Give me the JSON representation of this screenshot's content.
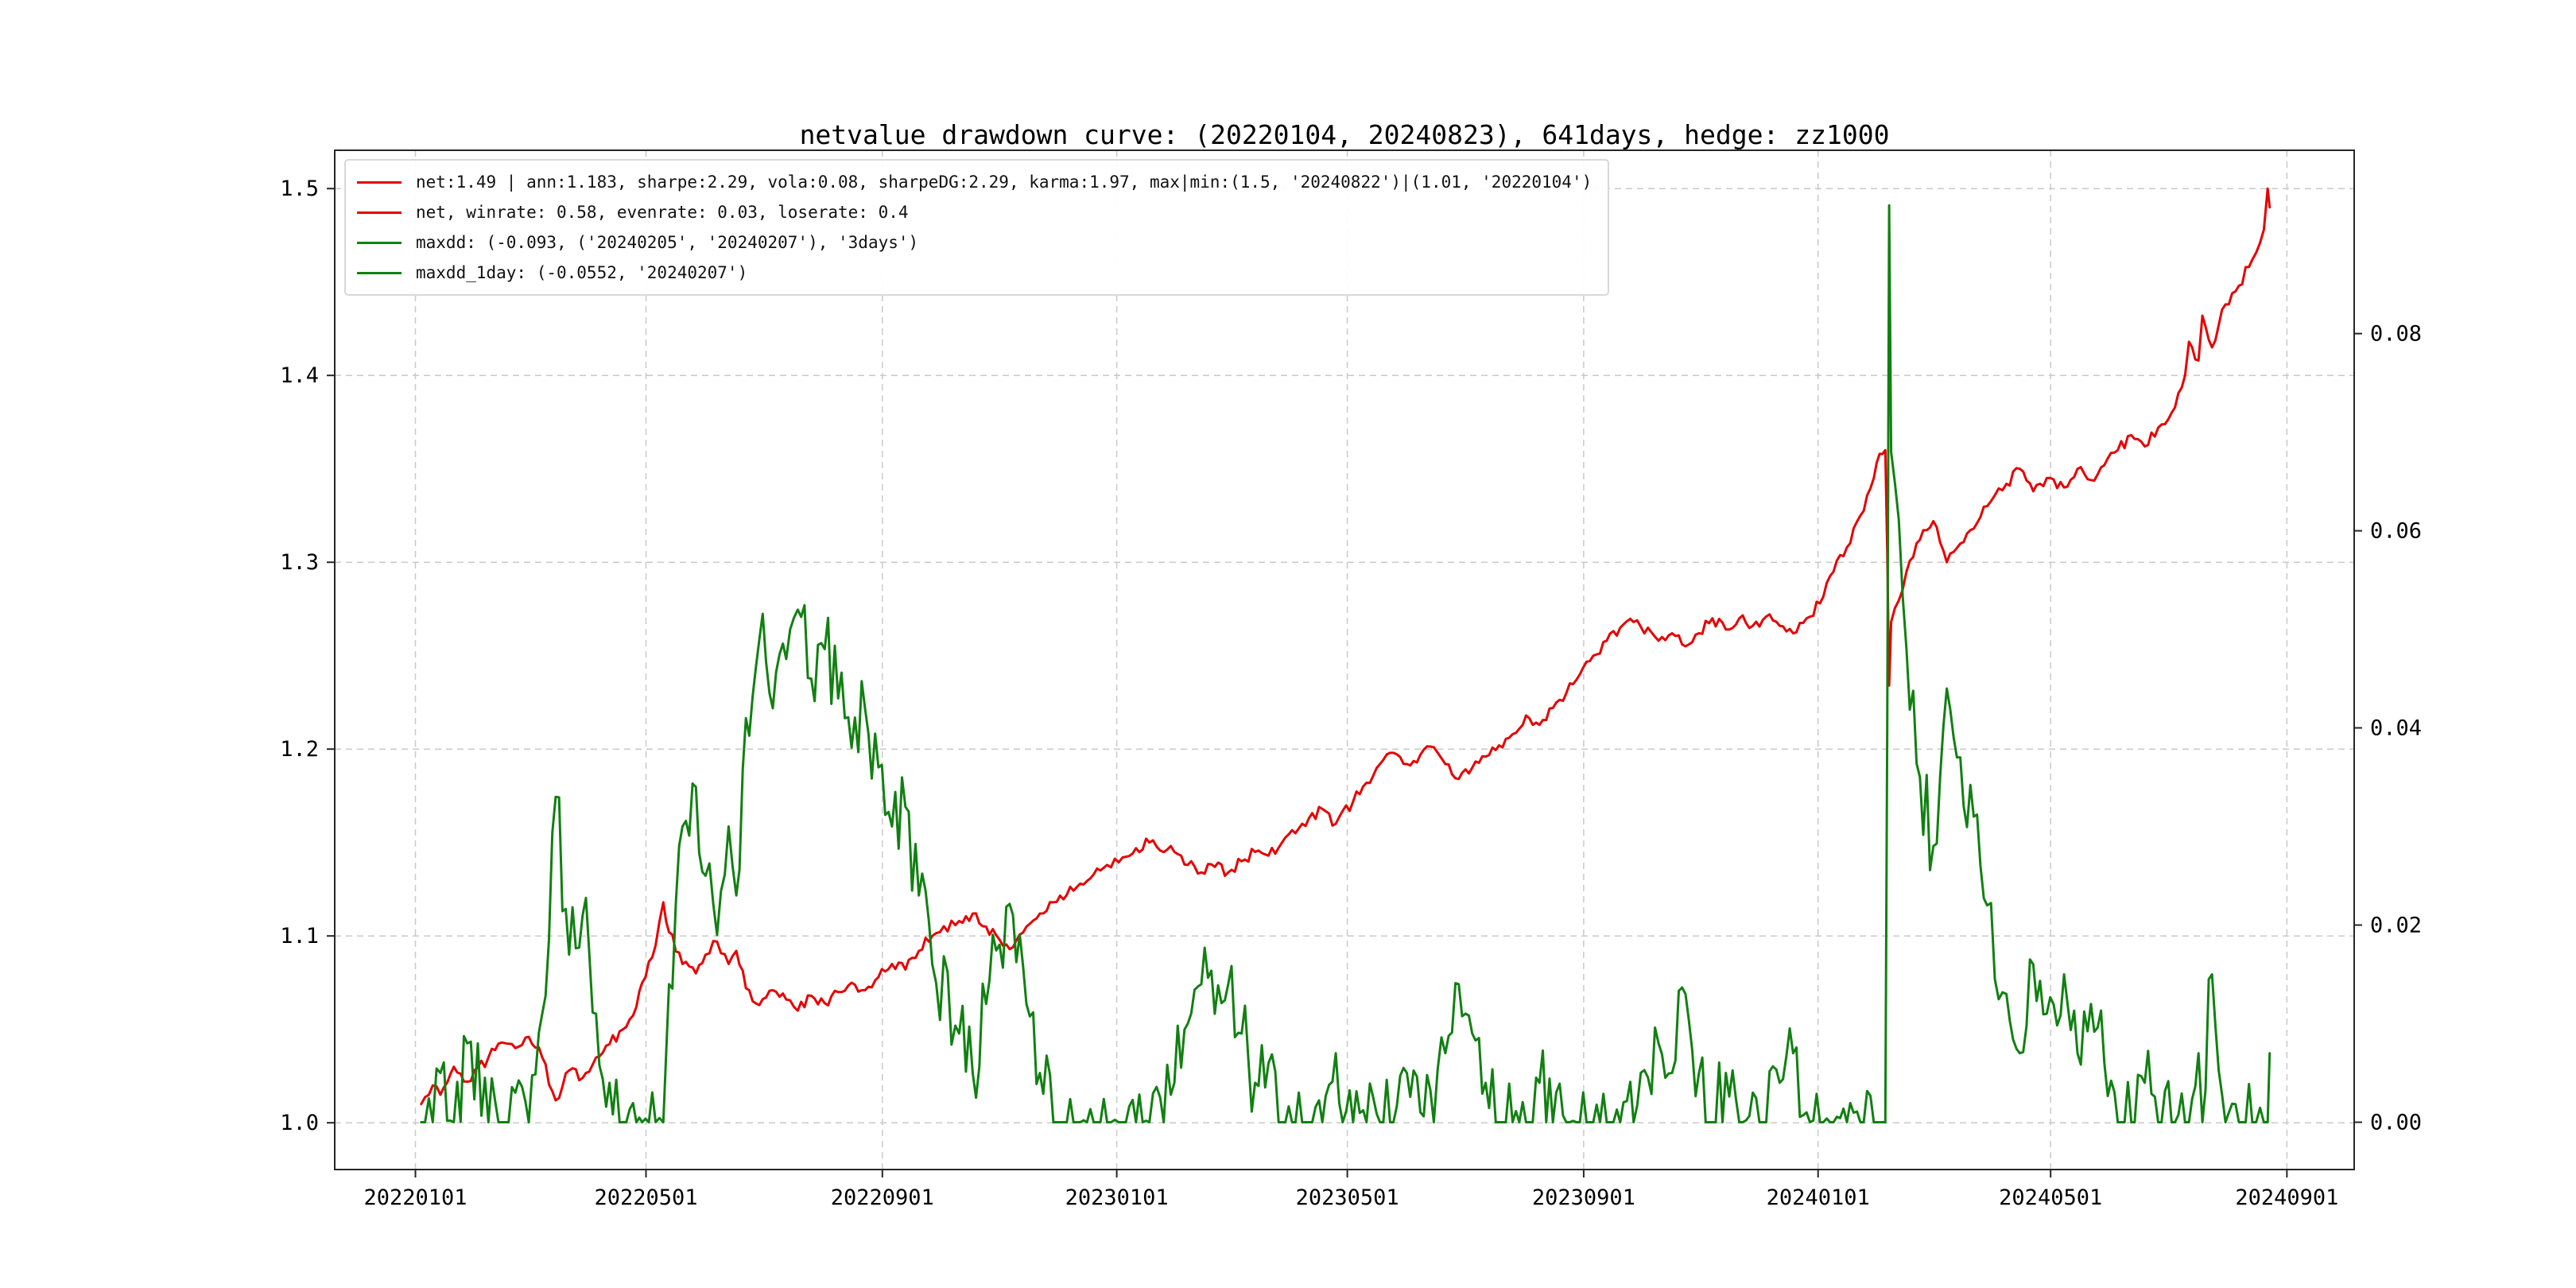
{
  "chart_data": {
    "type": "line",
    "title": "netvalue drawdown curve: (20220104, 20240823), 641days, hedge: zz1000",
    "grid": true,
    "legend_position": "upper left",
    "legend": {
      "items": [
        {
          "color": "#e60000",
          "label": "net:1.49 | ann:1.183, sharpe:2.29, vola:0.08, sharpeDG:2.29, karma:1.97, max|min:(1.5, '20240822')|(1.01, '20220104')"
        },
        {
          "color": "#e60000",
          "label": "net, winrate: 0.58, evenrate: 0.03, loserate: 0.4"
        },
        {
          "color": "#118011",
          "label": "maxdd: (-0.093, ('20240205', '20240207'), '3days')"
        },
        {
          "color": "#118011",
          "label": "maxdd_1day: (-0.0552, '20240207')"
        }
      ]
    },
    "x_axis": {
      "range": [
        "20211120",
        "20241006"
      ],
      "ticks": [
        "20220101",
        "20220501",
        "20220901",
        "20230101",
        "20230501",
        "20230901",
        "20240101",
        "20240501",
        "20240901"
      ]
    },
    "left_axis": {
      "label": "",
      "range": [
        0.975,
        1.5205
      ],
      "ticks": [
        1.0,
        1.1,
        1.2,
        1.3,
        1.4,
        1.5
      ],
      "labels": [
        "1.0",
        "1.1",
        "1.2",
        "1.3",
        "1.4",
        "1.5"
      ]
    },
    "right_axis": {
      "label": "",
      "range": [
        -0.0048,
        0.0986
      ],
      "ticks": [
        0.0,
        0.02,
        0.04,
        0.06,
        0.08
      ],
      "labels": [
        "0.00",
        "0.02",
        "0.04",
        "0.06",
        "0.08"
      ]
    },
    "dates": [
      "20220104",
      "20220110",
      "20220114",
      "20220121",
      "20220128",
      "20220208",
      "20220215",
      "20220222",
      "20220301",
      "20220308",
      "20220315",
      "20220322",
      "20220329",
      "20220405",
      "20220412",
      "20220419",
      "20220426",
      "20220429",
      "20220506",
      "20220510",
      "20220513",
      "20220520",
      "20220527",
      "20220601",
      "20220607",
      "20220613",
      "20220617",
      "20220622",
      "20220629",
      "20220706",
      "20220713",
      "20220719",
      "20220726",
      "20220802",
      "20220809",
      "20220816",
      "20220823",
      "20220830",
      "20220906",
      "20220913",
      "20220920",
      "20220927",
      "20221011",
      "20221018",
      "20221025",
      "20221101",
      "20221108",
      "20221115",
      "20221122",
      "20221129",
      "20221206",
      "20221213",
      "20221220",
      "20221227",
      "20230104",
      "20230111",
      "20230118",
      "20230131",
      "20230207",
      "20230214",
      "20230221",
      "20230228",
      "20230307",
      "20230314",
      "20230321",
      "20230328",
      "20230404",
      "20230411",
      "20230418",
      "20230425",
      "20230504",
      "20230511",
      "20230518",
      "20230525",
      "20230601",
      "20230608",
      "20230615",
      "20230621",
      "20230628",
      "20230705",
      "20230712",
      "20230719",
      "20230726",
      "20230802",
      "20230809",
      "20230816",
      "20230823",
      "20230830",
      "20230906",
      "20230913",
      "20230920",
      "20230927",
      "20231010",
      "20231017",
      "20231024",
      "20231031",
      "20231107",
      "20231114",
      "20231121",
      "20231128",
      "20231205",
      "20231212",
      "20231219",
      "20231226",
      "20240102",
      "20240109",
      "20240116",
      "20240123",
      "20240130",
      "20240202",
      "20240205",
      "20240206",
      "20240207",
      "20240208",
      "20240216",
      "20240223",
      "20240301",
      "20240308",
      "20240315",
      "20240322",
      "20240329",
      "20240408",
      "20240415",
      "20240422",
      "20240429",
      "20240508",
      "20240515",
      "20240522",
      "20240529",
      "20240605",
      "20240612",
      "20240619",
      "20240626",
      "20240703",
      "20240710",
      "20240712",
      "20240717",
      "20240719",
      "20240724",
      "20240731",
      "20240807",
      "20240814",
      "20240820",
      "20240822",
      "20240823"
    ],
    "series": [
      {
        "name": "net",
        "axis": "left",
        "color": "#e60000",
        "values": [
          1.01,
          1.02,
          1.015,
          1.03,
          1.022,
          1.035,
          1.043,
          1.04,
          1.046,
          1.035,
          1.012,
          1.028,
          1.024,
          1.035,
          1.042,
          1.05,
          1.062,
          1.075,
          1.095,
          1.118,
          1.102,
          1.085,
          1.08,
          1.09,
          1.097,
          1.085,
          1.092,
          1.072,
          1.063,
          1.071,
          1.066,
          1.06,
          1.068,
          1.064,
          1.07,
          1.075,
          1.071,
          1.078,
          1.085,
          1.082,
          1.092,
          1.1,
          1.108,
          1.112,
          1.105,
          1.098,
          1.094,
          1.105,
          1.112,
          1.118,
          1.122,
          1.128,
          1.133,
          1.138,
          1.142,
          1.147,
          1.15,
          1.145,
          1.138,
          1.134,
          1.137,
          1.134,
          1.14,
          1.145,
          1.143,
          1.15,
          1.155,
          1.163,
          1.168,
          1.16,
          1.172,
          1.182,
          1.192,
          1.198,
          1.192,
          1.197,
          1.201,
          1.192,
          1.184,
          1.19,
          1.196,
          1.202,
          1.208,
          1.218,
          1.213,
          1.222,
          1.23,
          1.24,
          1.25,
          1.258,
          1.265,
          1.268,
          1.258,
          1.262,
          1.255,
          1.262,
          1.27,
          1.264,
          1.27,
          1.266,
          1.271,
          1.266,
          1.262,
          1.27,
          1.278,
          1.295,
          1.308,
          1.325,
          1.345,
          1.358,
          1.36,
          1.306,
          1.234,
          1.268,
          1.295,
          1.312,
          1.322,
          1.3,
          1.31,
          1.318,
          1.33,
          1.342,
          1.35,
          1.338,
          1.345,
          1.34,
          1.35,
          1.344,
          1.352,
          1.36,
          1.368,
          1.362,
          1.372,
          1.38,
          1.4,
          1.418,
          1.408,
          1.432,
          1.415,
          1.438,
          1.448,
          1.462,
          1.478,
          1.5,
          1.49
        ]
      },
      {
        "name": "drawdown",
        "axis": "right",
        "color": "#118011",
        "values": [
          0.0,
          0.0,
          0.005,
          0.0,
          0.008,
          0.0,
          0.0,
          0.003,
          0.0,
          0.011,
          0.033,
          0.017,
          0.021,
          0.011,
          0.004,
          0.0,
          0.0,
          0.0,
          0.0,
          0.0,
          0.014,
          0.03,
          0.034,
          0.025,
          0.019,
          0.03,
          0.023,
          0.041,
          0.049,
          0.042,
          0.047,
          0.052,
          0.045,
          0.048,
          0.043,
          0.038,
          0.042,
          0.036,
          0.03,
          0.032,
          0.023,
          0.016,
          0.009,
          0.005,
          0.012,
          0.018,
          0.021,
          0.012,
          0.005,
          0.0,
          0.0,
          0.0,
          0.0,
          0.0,
          0.0,
          0.0,
          0.0,
          0.004,
          0.01,
          0.014,
          0.011,
          0.014,
          0.009,
          0.004,
          0.006,
          0.0,
          0.0,
          0.0,
          0.0,
          0.007,
          0.0,
          0.0,
          0.0,
          0.0,
          0.005,
          0.001,
          0.0,
          0.007,
          0.014,
          0.009,
          0.004,
          0.0,
          0.0,
          0.0,
          0.004,
          0.0,
          0.0,
          0.0,
          0.0,
          0.0,
          0.0,
          0.0,
          0.008,
          0.005,
          0.013,
          0.005,
          0.0,
          0.005,
          0.0,
          0.003,
          0.0,
          0.004,
          0.007,
          0.001,
          0.0,
          0.0,
          0.0,
          0.0,
          0.0,
          0.0,
          0.0,
          0.04,
          0.093,
          0.068,
          0.048,
          0.035,
          0.028,
          0.044,
          0.037,
          0.031,
          0.022,
          0.013,
          0.007,
          0.016,
          0.011,
          0.015,
          0.007,
          0.012,
          0.006,
          0.0,
          0.0,
          0.004,
          0.0,
          0.0,
          0.0,
          0.0,
          0.007,
          0.0,
          0.015,
          0.0,
          0.0,
          0.0,
          0.0,
          0.0,
          0.007
        ]
      }
    ]
  }
}
